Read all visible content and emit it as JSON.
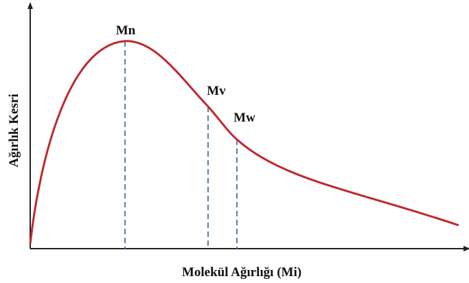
{
  "x_label": "Molekül Ağırlığı (Mi)",
  "y_label": "Ağırlık Kesri",
  "markers": [
    {
      "label": "Mn"
    },
    {
      "label": "Mv"
    },
    {
      "label": "Mw"
    }
  ]
}
